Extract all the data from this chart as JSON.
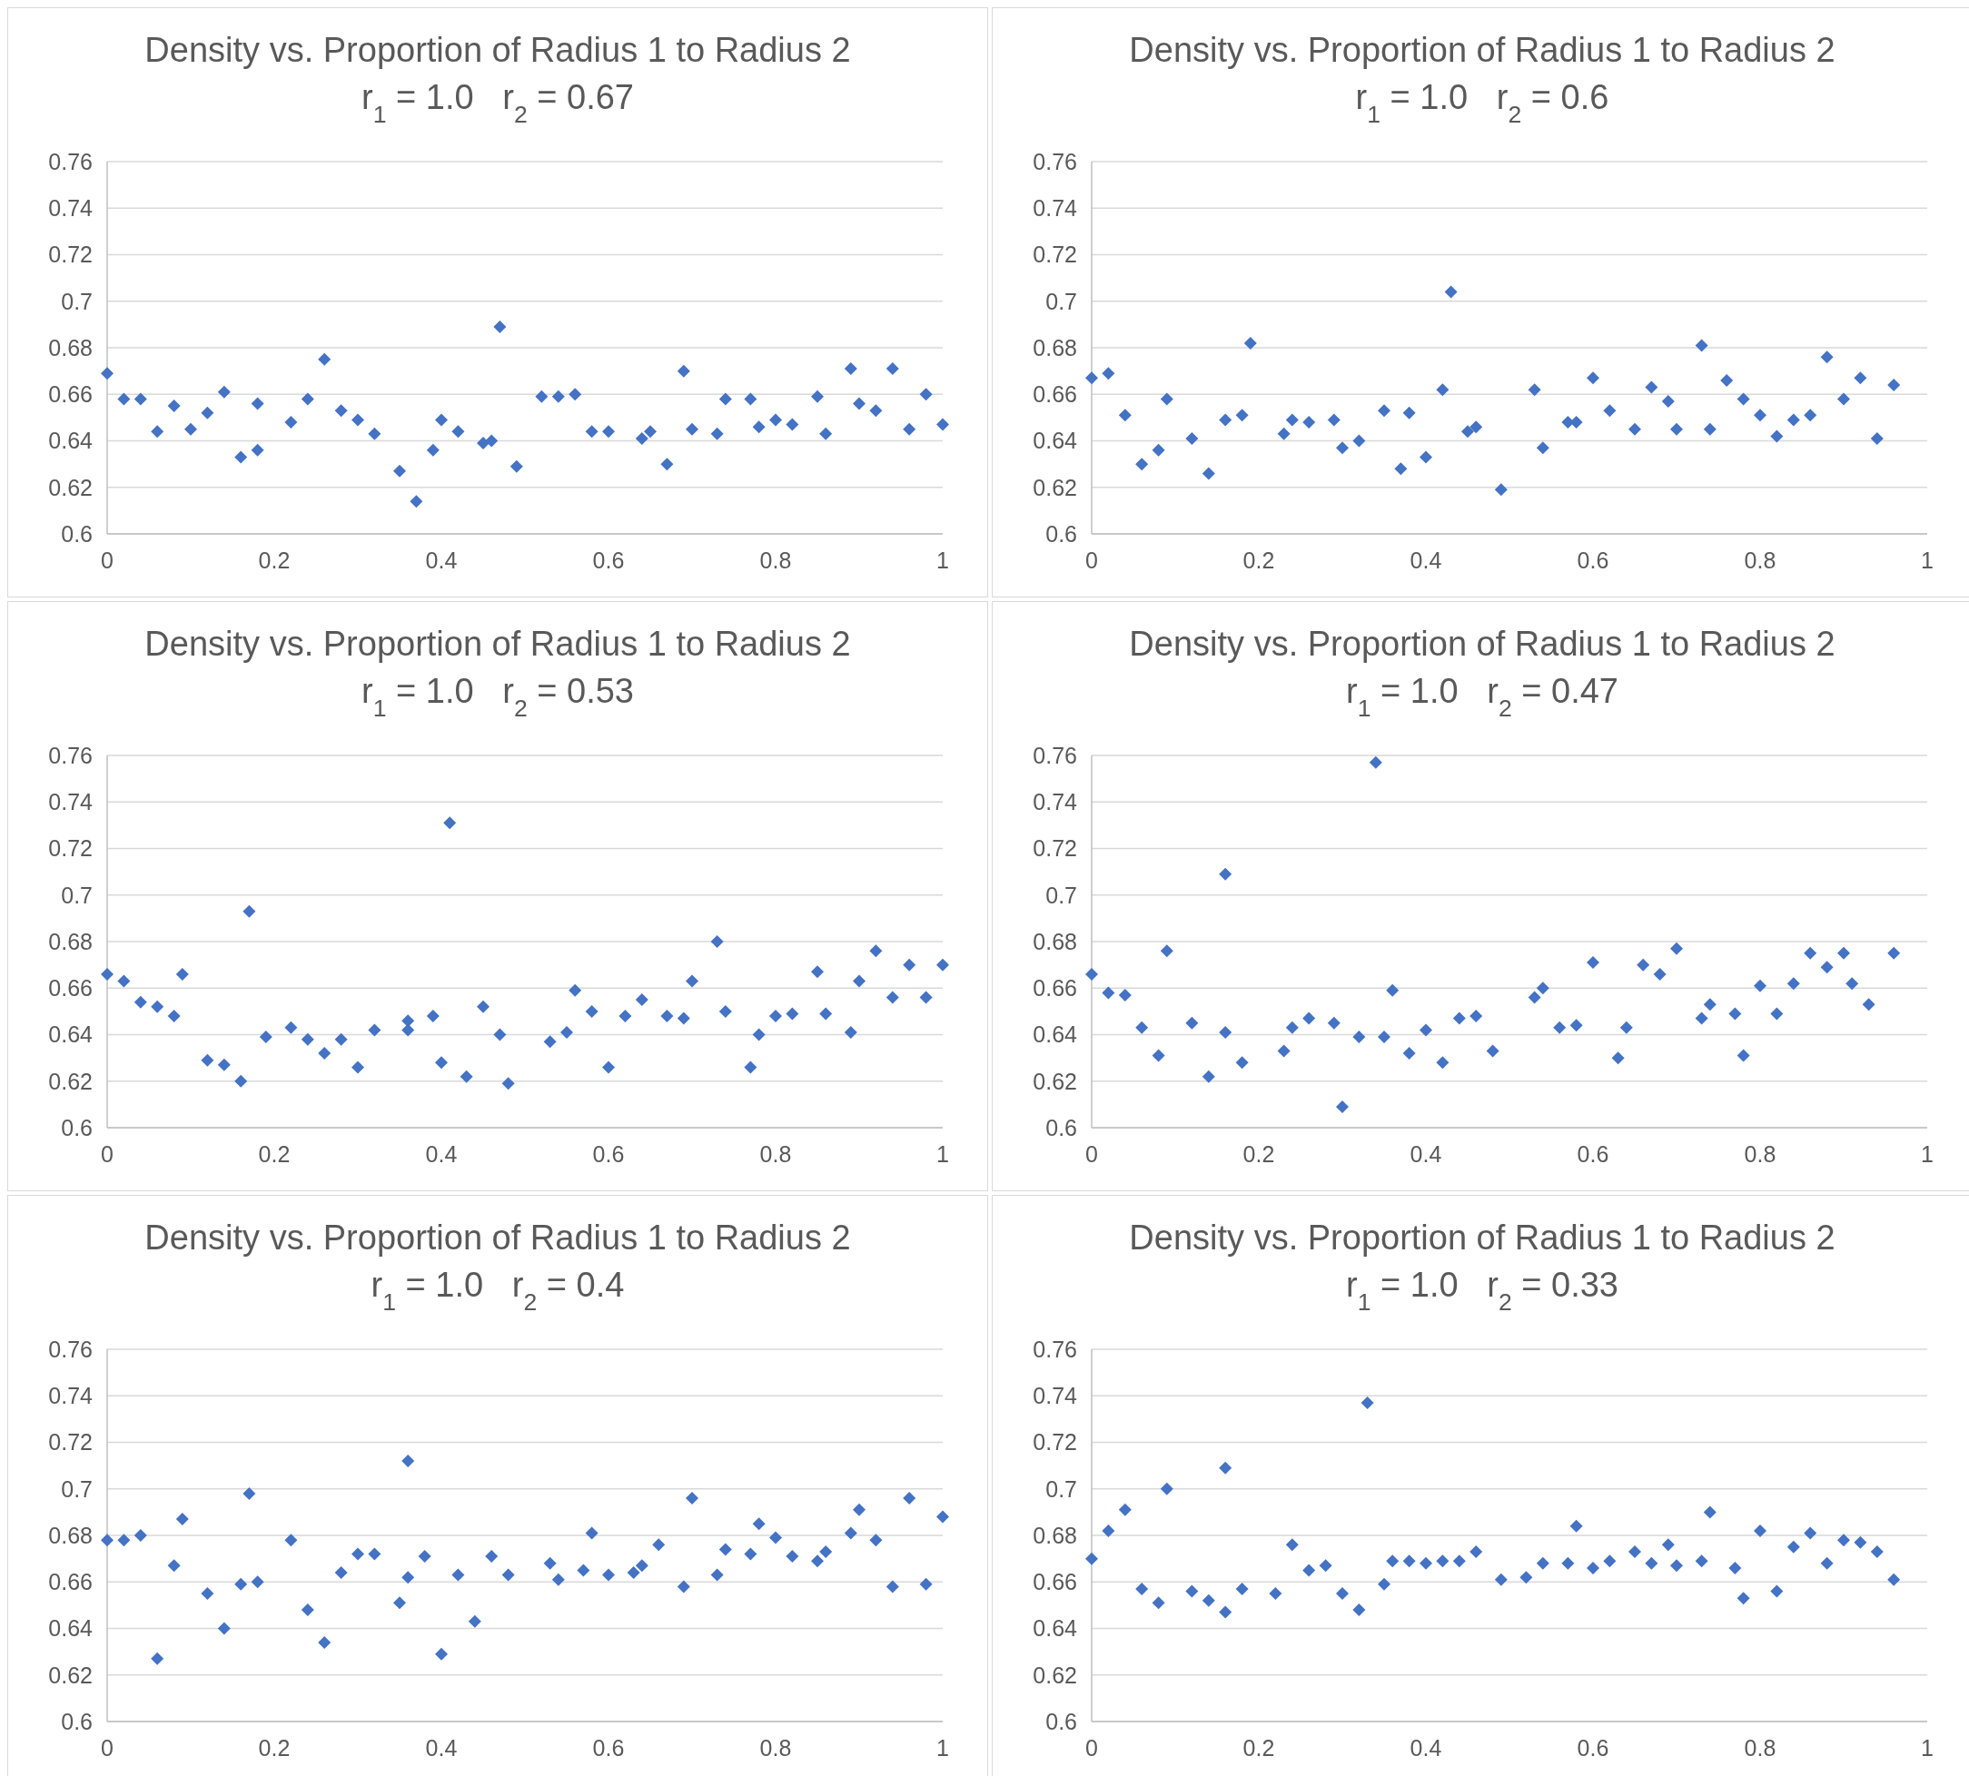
{
  "chart_data": [
    {
      "type": "scatter",
      "title": "Density vs. Proportion of Radius 1 to Radius 2",
      "subtitle": "r$_{1}$ = 1.0   r$_{2}$ = 0.67",
      "marker": "diamond",
      "grid": "y",
      "xlim": [
        0,
        1
      ],
      "xticks": [
        0,
        0.2,
        0.4,
        0.6,
        0.8,
        1
      ],
      "ylim": [
        0.6,
        0.76
      ],
      "yticks": [
        0.6,
        0.62,
        0.64,
        0.66,
        0.68,
        0.7,
        0.72,
        0.74,
        0.76
      ],
      "series": [
        {
          "color": "#4472c4",
          "x": [
            0,
            0.02,
            0.04,
            0.06,
            0.08,
            0.1,
            0.12,
            0.14,
            0.16,
            0.18,
            0.18,
            0.22,
            0.24,
            0.26,
            0.28,
            0.3,
            0.32,
            0.35,
            0.37,
            0.39,
            0.4,
            0.42,
            0.45,
            0.46,
            0.47,
            0.49,
            0.52,
            0.54,
            0.56,
            0.58,
            0.6,
            0.64,
            0.65,
            0.67,
            0.69,
            0.7,
            0.73,
            0.74,
            0.77,
            0.78,
            0.8,
            0.82,
            0.85,
            0.86,
            0.89,
            0.9,
            0.92,
            0.94,
            0.96,
            0.98,
            1
          ],
          "values": [
            0.669,
            0.658,
            0.658,
            0.644,
            0.655,
            0.645,
            0.652,
            0.661,
            0.633,
            0.656,
            0.636,
            0.648,
            0.658,
            0.675,
            0.653,
            0.649,
            0.643,
            0.627,
            0.614,
            0.636,
            0.649,
            0.644,
            0.639,
            0.64,
            0.689,
            0.629,
            0.659,
            0.659,
            0.66,
            0.644,
            0.644,
            0.641,
            0.644,
            0.63,
            0.67,
            0.645,
            0.643,
            0.658,
            0.658,
            0.646,
            0.649,
            0.647,
            0.659,
            0.643,
            0.671,
            0.656,
            0.653,
            0.671,
            0.645,
            0.66,
            0.647
          ]
        }
      ]
    },
    {
      "type": "scatter",
      "title": "Density vs. Proportion of Radius 1 to Radius 2",
      "subtitle": "r$_{1}$ = 1.0   r$_{2}$ = 0.6",
      "marker": "diamond",
      "grid": "y",
      "xlim": [
        0,
        1
      ],
      "xticks": [
        0,
        0.2,
        0.4,
        0.6,
        0.8,
        1
      ],
      "ylim": [
        0.6,
        0.76
      ],
      "yticks": [
        0.6,
        0.62,
        0.64,
        0.66,
        0.68,
        0.7,
        0.72,
        0.74,
        0.76
      ],
      "series": [
        {
          "color": "#4472c4",
          "x": [
            0,
            0.02,
            0.04,
            0.06,
            0.08,
            0.09,
            0.12,
            0.14,
            0.16,
            0.18,
            0.19,
            0.23,
            0.24,
            0.26,
            0.29,
            0.3,
            0.32,
            0.35,
            0.37,
            0.38,
            0.4,
            0.42,
            0.43,
            0.45,
            0.46,
            0.49,
            0.53,
            0.54,
            0.57,
            0.58,
            0.6,
            0.62,
            0.65,
            0.67,
            0.69,
            0.7,
            0.73,
            0.74,
            0.76,
            0.78,
            0.8,
            0.82,
            0.84,
            0.86,
            0.88,
            0.9,
            0.92,
            0.94,
            0.96
          ],
          "values": [
            0.667,
            0.669,
            0.651,
            0.63,
            0.636,
            0.658,
            0.641,
            0.626,
            0.649,
            0.651,
            0.682,
            0.643,
            0.649,
            0.648,
            0.649,
            0.637,
            0.64,
            0.653,
            0.628,
            0.652,
            0.633,
            0.662,
            0.704,
            0.644,
            0.646,
            0.619,
            0.662,
            0.637,
            0.648,
            0.648,
            0.667,
            0.653,
            0.645,
            0.663,
            0.657,
            0.645,
            0.681,
            0.645,
            0.666,
            0.658,
            0.651,
            0.642,
            0.649,
            0.651,
            0.676,
            0.658,
            0.667,
            0.641,
            0.664
          ]
        }
      ]
    },
    {
      "type": "scatter",
      "title": "Density vs. Proportion of Radius 1 to Radius 2",
      "subtitle": "r$_{1}$ = 1.0   r$_{2}$ = 0.53",
      "marker": "diamond",
      "grid": "y",
      "xlim": [
        0,
        1
      ],
      "xticks": [
        0,
        0.2,
        0.4,
        0.6,
        0.8,
        1
      ],
      "ylim": [
        0.6,
        0.76
      ],
      "yticks": [
        0.6,
        0.62,
        0.64,
        0.66,
        0.68,
        0.7,
        0.72,
        0.74,
        0.76
      ],
      "series": [
        {
          "color": "#4472c4",
          "x": [
            0,
            0.02,
            0.04,
            0.06,
            0.08,
            0.09,
            0.12,
            0.14,
            0.16,
            0.17,
            0.19,
            0.22,
            0.24,
            0.26,
            0.28,
            0.3,
            0.32,
            0.36,
            0.36,
            0.39,
            0.4,
            0.41,
            0.43,
            0.45,
            0.47,
            0.48,
            0.53,
            0.55,
            0.56,
            0.58,
            0.6,
            0.62,
            0.64,
            0.67,
            0.69,
            0.7,
            0.73,
            0.74,
            0.77,
            0.78,
            0.8,
            0.82,
            0.85,
            0.86,
            0.89,
            0.9,
            0.92,
            0.94,
            0.96,
            0.98,
            1
          ],
          "values": [
            0.666,
            0.663,
            0.654,
            0.652,
            0.648,
            0.666,
            0.629,
            0.627,
            0.62,
            0.693,
            0.639,
            0.643,
            0.638,
            0.632,
            0.638,
            0.626,
            0.642,
            0.646,
            0.642,
            0.648,
            0.628,
            0.731,
            0.622,
            0.652,
            0.64,
            0.619,
            0.637,
            0.641,
            0.659,
            0.65,
            0.626,
            0.648,
            0.655,
            0.648,
            0.647,
            0.663,
            0.68,
            0.65,
            0.626,
            0.64,
            0.648,
            0.649,
            0.667,
            0.649,
            0.641,
            0.663,
            0.676,
            0.656,
            0.67,
            0.656,
            0.67
          ]
        }
      ]
    },
    {
      "type": "scatter",
      "title": "Density vs. Proportion of Radius 1 to Radius 2",
      "subtitle": "r$_{1}$ = 1.0   r$_{2}$ = 0.47",
      "marker": "diamond",
      "grid": "y",
      "xlim": [
        0,
        1
      ],
      "xticks": [
        0,
        0.2,
        0.4,
        0.6,
        0.8,
        1
      ],
      "ylim": [
        0.6,
        0.76
      ],
      "yticks": [
        0.6,
        0.62,
        0.64,
        0.66,
        0.68,
        0.7,
        0.72,
        0.74,
        0.76
      ],
      "series": [
        {
          "color": "#4472c4",
          "x": [
            0,
            0.02,
            0.04,
            0.06,
            0.08,
            0.09,
            0.12,
            0.14,
            0.16,
            0.16,
            0.18,
            0.23,
            0.24,
            0.26,
            0.29,
            0.3,
            0.32,
            0.34,
            0.35,
            0.36,
            0.38,
            0.4,
            0.42,
            0.44,
            0.46,
            0.48,
            0.53,
            0.54,
            0.56,
            0.58,
            0.6,
            0.63,
            0.64,
            0.66,
            0.68,
            0.7,
            0.73,
            0.74,
            0.77,
            0.78,
            0.8,
            0.82,
            0.84,
            0.86,
            0.88,
            0.9,
            0.91,
            0.93,
            0.96
          ],
          "values": [
            0.666,
            0.658,
            0.657,
            0.643,
            0.631,
            0.676,
            0.645,
            0.622,
            0.641,
            0.709,
            0.628,
            0.633,
            0.643,
            0.647,
            0.645,
            0.609,
            0.639,
            0.757,
            0.639,
            0.659,
            0.632,
            0.642,
            0.628,
            0.647,
            0.648,
            0.633,
            0.656,
            0.66,
            0.643,
            0.644,
            0.671,
            0.63,
            0.643,
            0.67,
            0.666,
            0.677,
            0.647,
            0.653,
            0.649,
            0.631,
            0.661,
            0.649,
            0.662,
            0.675,
            0.669,
            0.675,
            0.662,
            0.653,
            0.675
          ]
        }
      ]
    },
    {
      "type": "scatter",
      "title": "Density vs. Proportion of Radius 1 to Radius 2",
      "subtitle": "r$_{1}$ = 1.0   r$_{2}$ = 0.4",
      "marker": "diamond",
      "grid": "y",
      "xlim": [
        0,
        1
      ],
      "xticks": [
        0,
        0.2,
        0.4,
        0.6,
        0.8,
        1
      ],
      "ylim": [
        0.6,
        0.76
      ],
      "yticks": [
        0.6,
        0.62,
        0.64,
        0.66,
        0.68,
        0.7,
        0.72,
        0.74,
        0.76
      ],
      "series": [
        {
          "color": "#4472c4",
          "x": [
            0,
            0.02,
            0.04,
            0.06,
            0.08,
            0.09,
            0.12,
            0.14,
            0.16,
            0.17,
            0.18,
            0.22,
            0.24,
            0.26,
            0.28,
            0.3,
            0.32,
            0.35,
            0.36,
            0.36,
            0.38,
            0.4,
            0.42,
            0.44,
            0.46,
            0.48,
            0.53,
            0.54,
            0.57,
            0.58,
            0.6,
            0.63,
            0.64,
            0.66,
            0.69,
            0.7,
            0.73,
            0.74,
            0.77,
            0.78,
            0.8,
            0.82,
            0.85,
            0.86,
            0.89,
            0.9,
            0.92,
            0.94,
            0.96,
            0.98,
            1
          ],
          "values": [
            0.678,
            0.678,
            0.68,
            0.627,
            0.667,
            0.687,
            0.655,
            0.64,
            0.659,
            0.698,
            0.66,
            0.678,
            0.648,
            0.634,
            0.664,
            0.672,
            0.672,
            0.651,
            0.712,
            0.662,
            0.671,
            0.629,
            0.663,
            0.643,
            0.671,
            0.663,
            0.668,
            0.661,
            0.665,
            0.681,
            0.663,
            0.664,
            0.667,
            0.676,
            0.658,
            0.696,
            0.663,
            0.674,
            0.672,
            0.685,
            0.679,
            0.671,
            0.669,
            0.673,
            0.681,
            0.691,
            0.678,
            0.658,
            0.696,
            0.659,
            0.688
          ]
        }
      ]
    },
    {
      "type": "scatter",
      "title": "Density vs. Proportion of Radius 1 to Radius 2",
      "subtitle": "r$_{1}$ = 1.0   r$_{2}$ = 0.33",
      "marker": "diamond",
      "grid": "y",
      "xlim": [
        0,
        1
      ],
      "xticks": [
        0,
        0.2,
        0.4,
        0.6,
        0.8,
        1
      ],
      "ylim": [
        0.6,
        0.76
      ],
      "yticks": [
        0.6,
        0.62,
        0.64,
        0.66,
        0.68,
        0.7,
        0.72,
        0.74,
        0.76
      ],
      "series": [
        {
          "color": "#4472c4",
          "x": [
            0,
            0.02,
            0.04,
            0.06,
            0.08,
            0.09,
            0.12,
            0.14,
            0.16,
            0.16,
            0.18,
            0.22,
            0.24,
            0.26,
            0.28,
            0.3,
            0.32,
            0.33,
            0.35,
            0.36,
            0.38,
            0.4,
            0.42,
            0.44,
            0.46,
            0.49,
            0.52,
            0.54,
            0.57,
            0.58,
            0.6,
            0.62,
            0.65,
            0.67,
            0.69,
            0.7,
            0.73,
            0.74,
            0.77,
            0.78,
            0.8,
            0.82,
            0.84,
            0.86,
            0.88,
            0.9,
            0.92,
            0.94,
            0.96
          ],
          "values": [
            0.67,
            0.682,
            0.691,
            0.657,
            0.651,
            0.7,
            0.656,
            0.652,
            0.709,
            0.647,
            0.657,
            0.655,
            0.676,
            0.665,
            0.667,
            0.655,
            0.648,
            0.737,
            0.659,
            0.669,
            0.669,
            0.668,
            0.669,
            0.669,
            0.673,
            0.661,
            0.662,
            0.668,
            0.668,
            0.684,
            0.666,
            0.669,
            0.673,
            0.668,
            0.676,
            0.667,
            0.669,
            0.69,
            0.666,
            0.653,
            0.682,
            0.656,
            0.675,
            0.681,
            0.668,
            0.678,
            0.677,
            0.673,
            0.661
          ]
        }
      ]
    }
  ]
}
